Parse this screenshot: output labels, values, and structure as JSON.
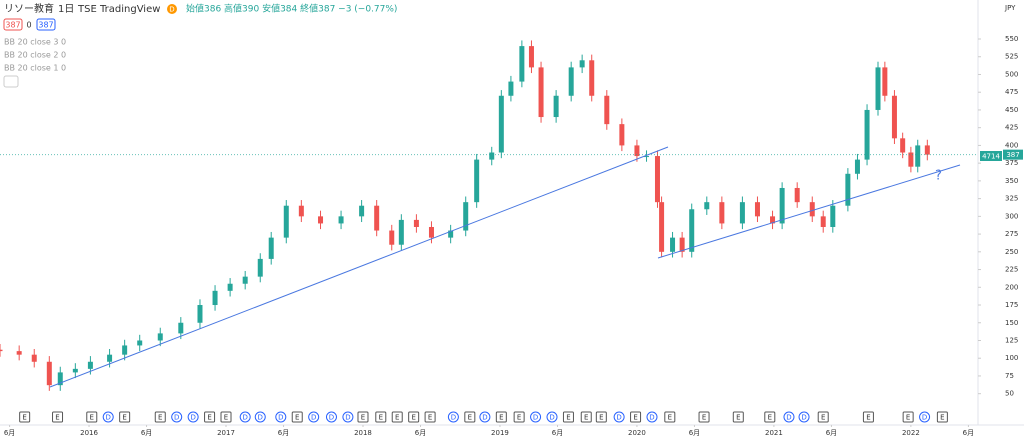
{
  "header": {
    "symbol": "リソー教育",
    "interval": "1日",
    "exchange": "TSE",
    "source": "TradingView",
    "badge": "D",
    "ohlc": "始値386 高値390 安値384 終値387 −3 (−0.77%)",
    "bid": "387",
    "spread": "0",
    "ask": "387",
    "indicators": [
      "BB 20 close 3 0",
      "BB 20 close 2 0",
      "BB 20 close 1 0"
    ],
    "currency": "JPY",
    "ticker": "4714",
    "annotation": "?"
  },
  "chart_data": {
    "type": "candlestick",
    "x": [
      2015.35,
      2015.49,
      2015.6,
      2015.71,
      2015.79,
      2015.9,
      2016.01,
      2016.15,
      2016.26,
      2016.37,
      2016.52,
      2016.67,
      2016.81,
      2016.92,
      2017.03,
      2017.14,
      2017.25,
      2017.33,
      2017.44,
      2017.55,
      2017.69,
      2017.84,
      2017.99,
      2018.1,
      2018.21,
      2018.28,
      2018.39,
      2018.5,
      2018.64,
      2018.75,
      2018.83,
      2018.94,
      2019.01,
      2019.08,
      2019.16,
      2019.23,
      2019.3,
      2019.41,
      2019.52,
      2019.6,
      2019.67,
      2019.78,
      2019.89,
      2020.0,
      2020.07,
      2020.15,
      2020.18,
      2020.26,
      2020.33,
      2020.4,
      2020.51,
      2020.62,
      2020.77,
      2020.88,
      2020.99,
      2021.06,
      2021.17,
      2021.28,
      2021.36,
      2021.43,
      2021.54,
      2021.61,
      2021.68,
      2021.76,
      2021.81,
      2021.88,
      2021.94,
      2022.0,
      2022.05,
      2022.12
    ],
    "open": [
      112,
      110,
      105,
      95,
      62,
      80,
      85,
      95,
      105,
      118,
      125,
      135,
      150,
      175,
      195,
      205,
      215,
      240,
      270,
      315,
      300,
      290,
      300,
      315,
      280,
      260,
      295,
      285,
      270,
      280,
      320,
      380,
      390,
      470,
      490,
      540,
      510,
      440,
      470,
      510,
      520,
      470,
      430,
      400,
      385,
      385,
      320,
      250,
      270,
      250,
      310,
      320,
      290,
      320,
      300,
      290,
      340,
      320,
      300,
      285,
      315,
      360,
      380,
      450,
      510,
      470,
      410,
      390,
      370,
      400
    ],
    "high": [
      120,
      118,
      113,
      103,
      88,
      93,
      103,
      113,
      126,
      133,
      143,
      158,
      183,
      203,
      213,
      223,
      248,
      278,
      323,
      323,
      308,
      308,
      323,
      323,
      288,
      303,
      303,
      293,
      288,
      328,
      388,
      398,
      478,
      498,
      548,
      548,
      518,
      478,
      518,
      528,
      528,
      478,
      438,
      408,
      393,
      393,
      328,
      278,
      278,
      318,
      328,
      328,
      328,
      328,
      308,
      348,
      348,
      328,
      308,
      323,
      368,
      388,
      458,
      518,
      518,
      478,
      418,
      398,
      408,
      408
    ],
    "low": [
      102,
      97,
      87,
      54,
      54,
      72,
      77,
      87,
      97,
      110,
      117,
      127,
      142,
      167,
      187,
      197,
      207,
      232,
      262,
      292,
      282,
      282,
      292,
      272,
      252,
      252,
      277,
      262,
      262,
      272,
      312,
      372,
      382,
      462,
      482,
      502,
      432,
      432,
      462,
      502,
      462,
      422,
      392,
      377,
      377,
      312,
      242,
      242,
      242,
      242,
      302,
      282,
      282,
      292,
      282,
      282,
      312,
      292,
      277,
      277,
      307,
      352,
      372,
      442,
      462,
      402,
      382,
      362,
      362,
      379
    ],
    "close": [
      110,
      105,
      95,
      62,
      80,
      85,
      95,
      105,
      118,
      125,
      135,
      150,
      175,
      195,
      205,
      215,
      240,
      270,
      315,
      300,
      290,
      300,
      315,
      280,
      260,
      295,
      285,
      270,
      280,
      320,
      380,
      390,
      470,
      490,
      540,
      510,
      440,
      470,
      510,
      520,
      470,
      430,
      400,
      385,
      385,
      320,
      250,
      270,
      250,
      310,
      320,
      290,
      320,
      300,
      290,
      340,
      320,
      300,
      285,
      315,
      360,
      380,
      450,
      510,
      470,
      410,
      390,
      370,
      400,
      387
    ],
    "up_color": "#26a69a",
    "down_color": "#ef5350",
    "last_price": 387,
    "xlim": [
      2015.35,
      2022.49
    ],
    "ylim": [
      27,
      605
    ],
    "yticks": [
      50,
      75,
      100,
      125,
      150,
      175,
      200,
      225,
      250,
      275,
      300,
      325,
      350,
      375,
      400,
      425,
      450,
      475,
      500,
      525,
      550
    ],
    "xticks": [
      {
        "value": 2015.42,
        "label": "6月"
      },
      2016,
      {
        "value": 2016.42,
        "label": "6月"
      },
      2017,
      {
        "value": 2017.42,
        "label": "6月"
      },
      2018,
      {
        "value": 2018.42,
        "label": "6月"
      },
      2019,
      {
        "value": 2019.42,
        "label": "6月"
      },
      2020,
      {
        "value": 2020.42,
        "label": "6月"
      },
      2021,
      {
        "value": 2021.42,
        "label": "6月"
      },
      2022,
      {
        "value": 2022.42,
        "label": "6月"
      }
    ],
    "grid": false,
    "event_x": [
      2015.53,
      2015.77,
      2016.02,
      2016.14,
      2016.26,
      2016.52,
      2016.64,
      2016.76,
      2016.88,
      2017.0,
      2017.14,
      2017.25,
      2017.4,
      2017.52,
      2017.64,
      2017.77,
      2017.89,
      2018.0,
      2018.13,
      2018.25,
      2018.37,
      2018.49,
      2018.66,
      2018.78,
      2018.89,
      2019.01,
      2019.14,
      2019.26,
      2019.38,
      2019.5,
      2019.63,
      2019.74,
      2019.87,
      2019.99,
      2020.11,
      2020.24,
      2020.49,
      2020.74,
      2020.97,
      2021.11,
      2021.22,
      2021.36,
      2021.69,
      2021.98,
      2022.1,
      2022.23
    ],
    "event_labels": [
      "E",
      "E",
      "E",
      "D",
      "E",
      "E",
      "D",
      "D",
      "E",
      "E",
      "D",
      "D",
      "D",
      "E",
      "D",
      "D",
      "D",
      "E",
      "E",
      "E",
      "E",
      "E",
      "D",
      "E",
      "D",
      "E",
      "E",
      "D",
      "D",
      "E",
      "E",
      "E",
      "D",
      "E",
      "D",
      "E",
      "E",
      "E",
      "E",
      "D",
      "D",
      "E",
      "E",
      "E",
      "D",
      "E"
    ]
  }
}
